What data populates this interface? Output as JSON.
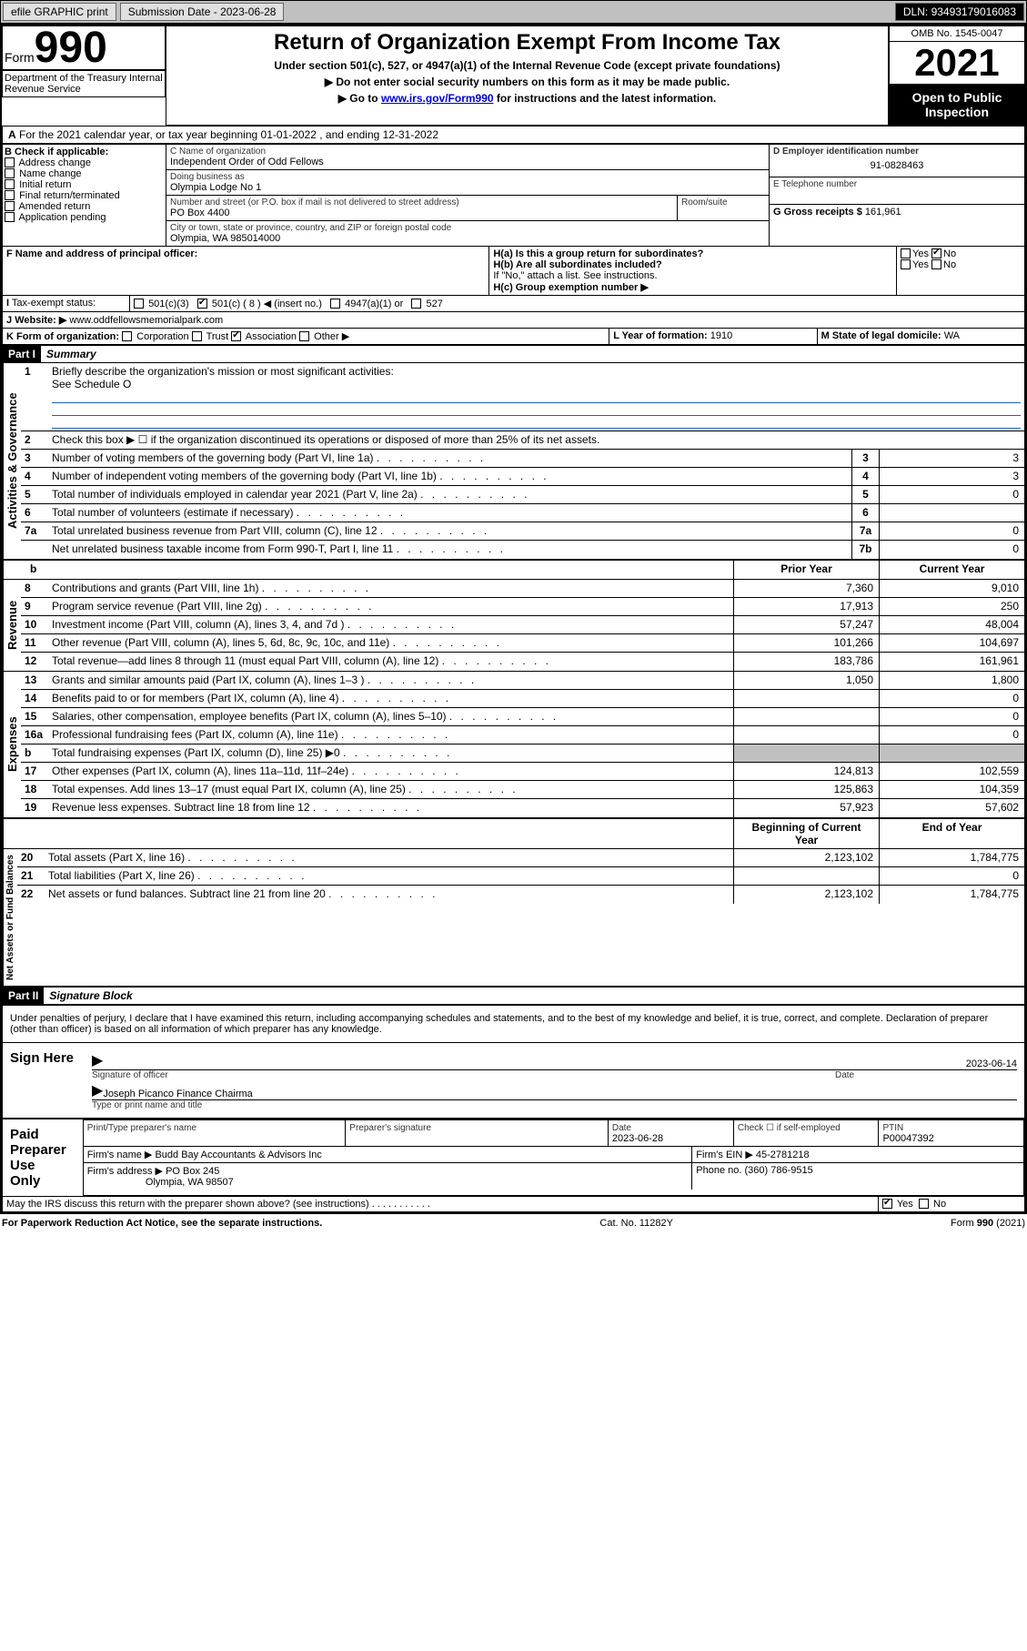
{
  "topbar": {
    "efile": "efile GRAPHIC print",
    "submission": "Submission Date - 2023-06-28",
    "dln": "DLN: 93493179016083"
  },
  "header": {
    "form_word": "Form",
    "form_num": "990",
    "title": "Return of Organization Exempt From Income Tax",
    "sub1": "Under section 501(c), 527, or 4947(a)(1) of the Internal Revenue Code (except private foundations)",
    "sub2": "▶ Do not enter social security numbers on this form as it may be made public.",
    "sub3_pre": "▶ Go to ",
    "sub3_link": "www.irs.gov/Form990",
    "sub3_post": " for instructions and the latest information.",
    "omb": "OMB No. 1545-0047",
    "year": "2021",
    "open": "Open to Public Inspection",
    "dept": "Department of the Treasury Internal Revenue Service"
  },
  "row_a": "For the 2021 calendar year, or tax year beginning 01-01-2022    , and ending 12-31-2022",
  "col_b": {
    "label": "B Check if applicable:",
    "items": [
      "Address change",
      "Name change",
      "Initial return",
      "Final return/terminated",
      "Amended return",
      "Application pending"
    ]
  },
  "col_c": {
    "name_label": "C Name of organization",
    "name": "Independent Order of Odd Fellows",
    "dba_label": "Doing business as",
    "dba": "Olympia Lodge No 1",
    "addr_label": "Number and street (or P.O. box if mail is not delivered to street address)",
    "room_label": "Room/suite",
    "addr": "PO Box 4400",
    "city_label": "City or town, state or province, country, and ZIP or foreign postal code",
    "city": "Olympia, WA  985014000"
  },
  "col_d": {
    "ein_label": "D Employer identification number",
    "ein": "91-0828463",
    "tel_label": "E Telephone number",
    "gross_label": "G Gross receipts $",
    "gross": "161,961"
  },
  "row_f": {
    "f_label": "F  Name and address of principal officer:",
    "ha": "H(a)  Is this a group return for subordinates?",
    "hb": "H(b)  Are all subordinates included?",
    "hb_note": "If \"No,\" attach a list. See instructions.",
    "hc": "H(c)  Group exemption number ▶",
    "yes": "Yes",
    "no": "No"
  },
  "row_i": {
    "i_label": "Tax-exempt status:",
    "c3": "501(c)(3)",
    "c": "501(c) ( 8 ) ◀ (insert no.)",
    "a1": "4947(a)(1) or",
    "s527": "527"
  },
  "row_j": {
    "label": "Website: ▶",
    "val": "www.oddfellowsmemorialpark.com"
  },
  "row_k": {
    "k_label": "K Form of organization:",
    "corp": "Corporation",
    "trust": "Trust",
    "assoc": "Association",
    "other": "Other ▶",
    "l_label": "L Year of formation:",
    "l_val": "1910",
    "m_label": "M State of legal domicile:",
    "m_val": "WA"
  },
  "part1": {
    "header": "Part I",
    "title": "Summary",
    "l1": "Briefly describe the organization's mission or most significant activities:",
    "l1v": "See Schedule O",
    "l2": "Check this box ▶ ☐  if the organization discontinued its operations or disposed of more than 25% of its net assets.",
    "lines": [
      {
        "n": "3",
        "t": "Number of voting members of the governing body (Part VI, line 1a)",
        "box": "3",
        "v": "3"
      },
      {
        "n": "4",
        "t": "Number of independent voting members of the governing body (Part VI, line 1b)",
        "box": "4",
        "v": "3"
      },
      {
        "n": "5",
        "t": "Total number of individuals employed in calendar year 2021 (Part V, line 2a)",
        "box": "5",
        "v": "0"
      },
      {
        "n": "6",
        "t": "Total number of volunteers (estimate if necessary)",
        "box": "6",
        "v": ""
      },
      {
        "n": "7a",
        "t": "Total unrelated business revenue from Part VIII, column (C), line 12",
        "box": "7a",
        "v": "0"
      },
      {
        "n": "",
        "t": "Net unrelated business taxable income from Form 990-T, Part I, line 11",
        "box": "7b",
        "v": "0"
      }
    ],
    "colhead_b": "b",
    "colhead_py": "Prior Year",
    "colhead_cy": "Current Year"
  },
  "revenue": {
    "label": "Revenue",
    "lines": [
      {
        "n": "8",
        "t": "Contributions and grants (Part VIII, line 1h)",
        "py": "7,360",
        "cy": "9,010"
      },
      {
        "n": "9",
        "t": "Program service revenue (Part VIII, line 2g)",
        "py": "17,913",
        "cy": "250"
      },
      {
        "n": "10",
        "t": "Investment income (Part VIII, column (A), lines 3, 4, and 7d )",
        "py": "57,247",
        "cy": "48,004"
      },
      {
        "n": "11",
        "t": "Other revenue (Part VIII, column (A), lines 5, 6d, 8c, 9c, 10c, and 11e)",
        "py": "101,266",
        "cy": "104,697"
      },
      {
        "n": "12",
        "t": "Total revenue—add lines 8 through 11 (must equal Part VIII, column (A), line 12)",
        "py": "183,786",
        "cy": "161,961"
      }
    ]
  },
  "expenses": {
    "label": "Expenses",
    "lines": [
      {
        "n": "13",
        "t": "Grants and similar amounts paid (Part IX, column (A), lines 1–3 )",
        "py": "1,050",
        "cy": "1,800"
      },
      {
        "n": "14",
        "t": "Benefits paid to or for members (Part IX, column (A), line 4)",
        "py": "",
        "cy": "0"
      },
      {
        "n": "15",
        "t": "Salaries, other compensation, employee benefits (Part IX, column (A), lines 5–10)",
        "py": "",
        "cy": "0"
      },
      {
        "n": "16a",
        "t": "Professional fundraising fees (Part IX, column (A), line 11e)",
        "py": "",
        "cy": "0"
      },
      {
        "n": "b",
        "t": "Total fundraising expenses (Part IX, column (D), line 25) ▶0",
        "py": "grey",
        "cy": "grey"
      },
      {
        "n": "17",
        "t": "Other expenses (Part IX, column (A), lines 11a–11d, 11f–24e)",
        "py": "124,813",
        "cy": "102,559"
      },
      {
        "n": "18",
        "t": "Total expenses. Add lines 13–17 (must equal Part IX, column (A), line 25)",
        "py": "125,863",
        "cy": "104,359"
      },
      {
        "n": "19",
        "t": "Revenue less expenses. Subtract line 18 from line 12",
        "py": "57,923",
        "cy": "57,602"
      }
    ]
  },
  "netassets": {
    "label": "Net Assets or Fund Balances",
    "head_py": "Beginning of Current Year",
    "head_cy": "End of Year",
    "lines": [
      {
        "n": "20",
        "t": "Total assets (Part X, line 16)",
        "py": "2,123,102",
        "cy": "1,784,775"
      },
      {
        "n": "21",
        "t": "Total liabilities (Part X, line 26)",
        "py": "",
        "cy": "0"
      },
      {
        "n": "22",
        "t": "Net assets or fund balances. Subtract line 21 from line 20",
        "py": "2,123,102",
        "cy": "1,784,775"
      }
    ]
  },
  "part2": {
    "header": "Part II",
    "title": "Signature Block",
    "decl": "Under penalties of perjury, I declare that I have examined this return, including accompanying schedules and statements, and to the best of my knowledge and belief, it is true, correct, and complete. Declaration of preparer (other than officer) is based on all information of which preparer has any knowledge."
  },
  "sign": {
    "label": "Sign Here",
    "sig_officer": "Signature of officer",
    "date": "Date",
    "date_val": "2023-06-14",
    "name": "Joseph Picanco Finance Chairma",
    "name_label": "Type or print name and title"
  },
  "prep": {
    "label": "Paid Preparer Use Only",
    "h1": "Print/Type preparer's name",
    "h2": "Preparer's signature",
    "h3": "Date",
    "h3v": "2023-06-28",
    "h4": "Check ☐ if self-employed",
    "h5": "PTIN",
    "h5v": "P00047392",
    "firm_name_label": "Firm's name    ▶",
    "firm_name": "Budd Bay Accountants & Advisors Inc",
    "firm_ein_label": "Firm's EIN ▶",
    "firm_ein": "45-2781218",
    "firm_addr_label": "Firm's address ▶",
    "firm_addr1": "PO Box 245",
    "firm_addr2": "Olympia, WA  98507",
    "phone_label": "Phone no.",
    "phone": "(360) 786-9515"
  },
  "may": {
    "text": "May the IRS discuss this return with the preparer shown above? (see instructions)",
    "yes": "Yes",
    "no": "No"
  },
  "footer": {
    "left": "For Paperwork Reduction Act Notice, see the separate instructions.",
    "mid": "Cat. No. 11282Y",
    "right": "Form 990 (2021)"
  },
  "aglabel": "Activities & Governance"
}
